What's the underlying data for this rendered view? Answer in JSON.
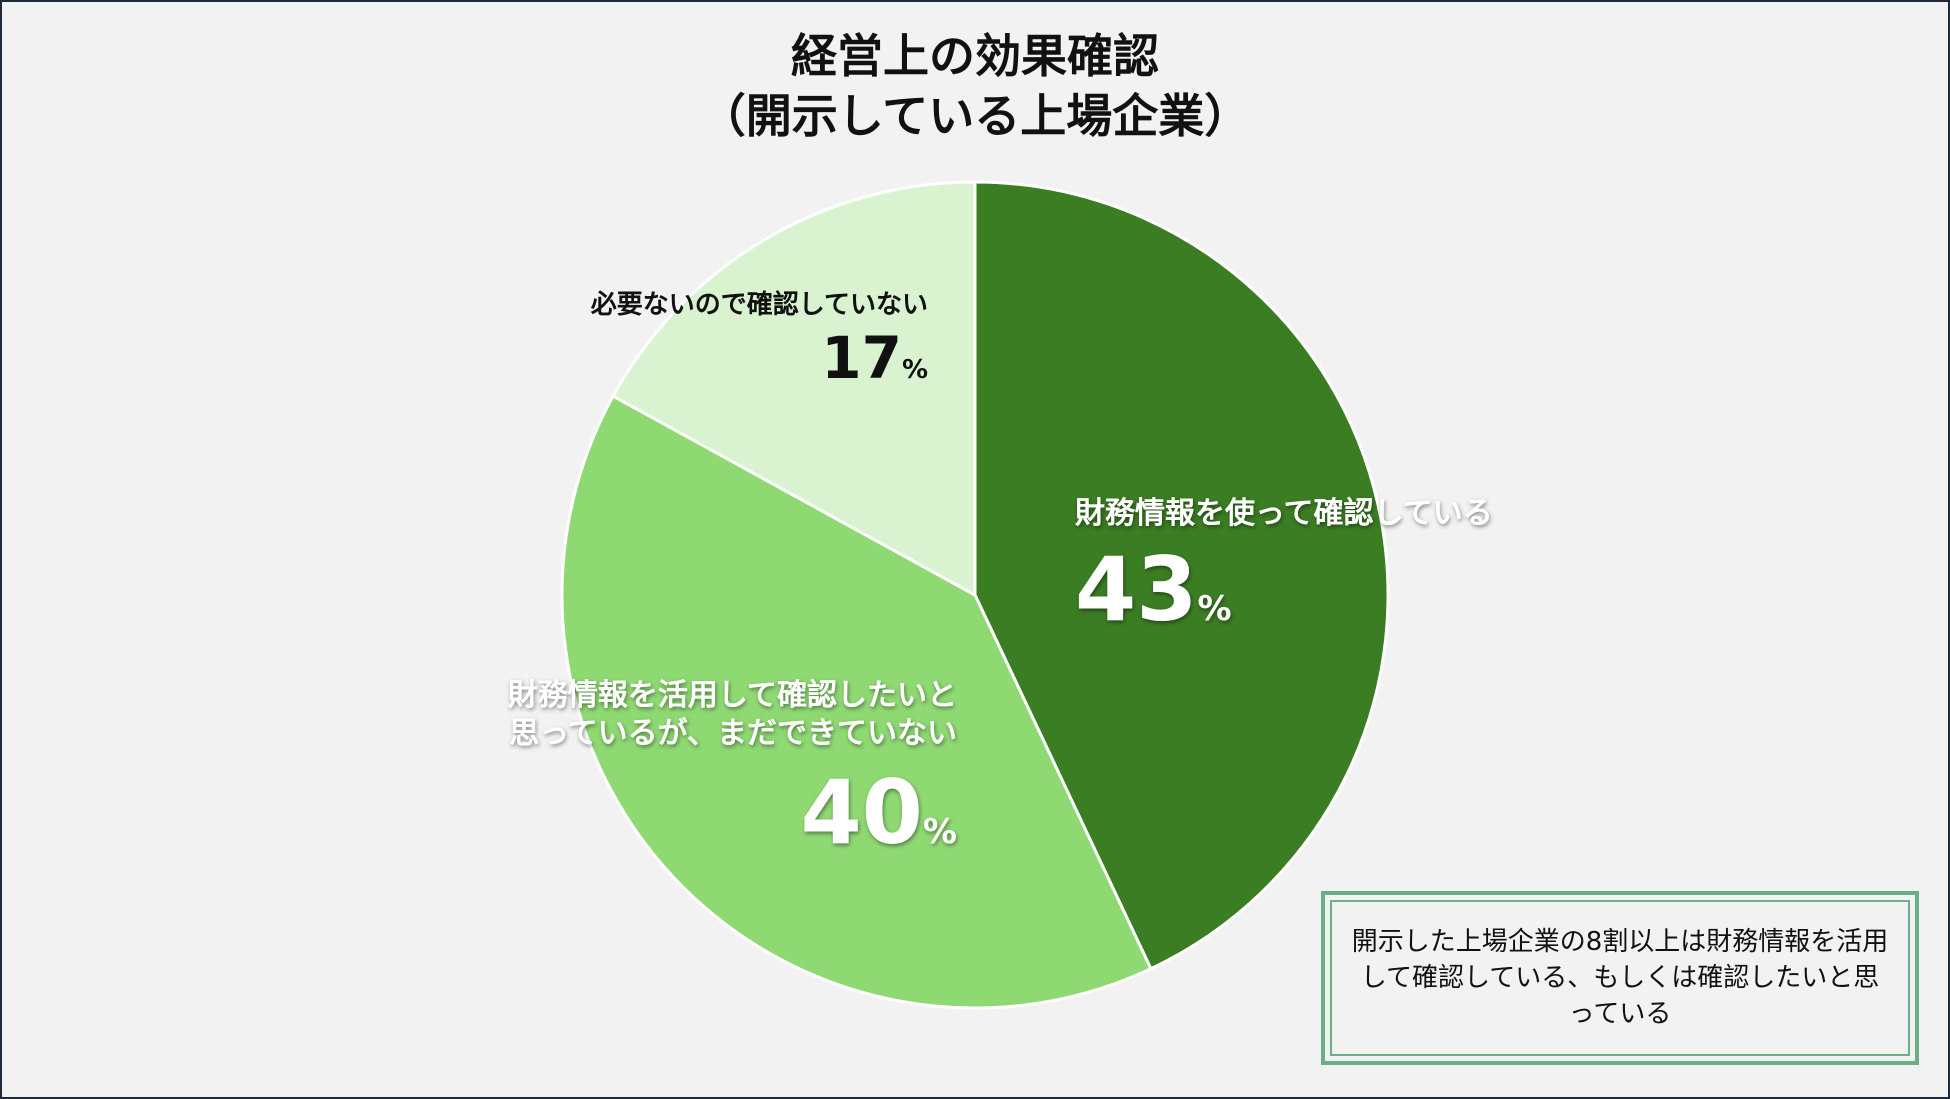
{
  "chart_data": {
    "type": "pie",
    "title": [
      "経営上の効果確認",
      "（開示している上場企業）"
    ],
    "slices": [
      {
        "label": [
          "財務情報を使って確認している"
        ],
        "value": 43,
        "unit": "%",
        "color": "#3b7d23",
        "label_color": "#ffffff"
      },
      {
        "label": [
          "財務情報を活用して確認したいと",
          "思っているが、まだできていない"
        ],
        "value": 40,
        "unit": "%",
        "color": "#8fd973",
        "label_color": "#ffffff"
      },
      {
        "label": [
          "必要ないので確認していない"
        ],
        "value": 17,
        "unit": "%",
        "color": "#d9f2d0",
        "label_color": "#111111"
      }
    ],
    "start_angle_deg": 0,
    "direction": "clockwise",
    "legend": "none"
  },
  "note": {
    "text": "開示した上場企業の8割以上は財務情報を活用して確認している、もしくは確認したいと思っている",
    "border_color": "#6aae8a"
  }
}
